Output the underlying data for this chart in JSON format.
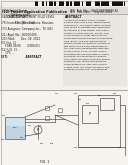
{
  "page_bg": "#f2f0eb",
  "barcode_color": "#111111",
  "header_bg": "#e0ddd6",
  "text_dark": "#1a1a1a",
  "text_mid": "#333333",
  "text_light": "#555555",
  "abstract_bg": "#e8e6e0",
  "divider_color": "#888888",
  "diagram_line": "#444444",
  "diagram_bg": "#f5f3ee",
  "tank_fill": "#b8ccd8"
}
